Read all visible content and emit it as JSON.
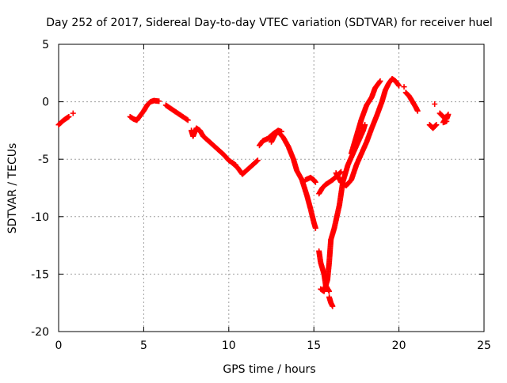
{
  "chart_data": {
    "type": "scatter",
    "title": "Day 252 of 2017, Sidereal Day-to-day VTEC variation (SDTVAR) for receiver huel",
    "xlabel": "GPS time / hours",
    "ylabel": "SDTVAR / TECUs",
    "xlim": [
      0,
      25
    ],
    "ylim": [
      -20,
      5
    ],
    "xticks": [
      0,
      5,
      10,
      15,
      20,
      25
    ],
    "yticks": [
      -20,
      -15,
      -10,
      -5,
      0,
      5
    ],
    "xtick_labels": [
      "0",
      "5",
      "10",
      "15",
      "20",
      "25"
    ],
    "ytick_labels": [
      "-20",
      "-15",
      "-10",
      "-5",
      "0",
      "5"
    ],
    "grid": true,
    "marker": "+",
    "series": [
      {
        "name": "SDTVAR",
        "color": "#ff0000",
        "tracks": [
          [
            [
              0.0,
              -2.0
            ],
            [
              0.15,
              -1.8
            ],
            [
              0.3,
              -1.6
            ],
            [
              0.5,
              -1.4
            ],
            [
              0.6,
              -1.3
            ]
          ],
          [
            [
              0.85,
              -1.0
            ]
          ],
          [
            [
              4.2,
              -1.3
            ],
            [
              4.4,
              -1.5
            ],
            [
              4.6,
              -1.6
            ],
            [
              4.8,
              -1.2
            ],
            [
              5.0,
              -0.8
            ],
            [
              5.2,
              -0.3
            ],
            [
              5.4,
              0.0
            ],
            [
              5.6,
              0.1
            ],
            [
              5.9,
              0.05
            ]
          ],
          [
            [
              6.3,
              -0.3
            ],
            [
              6.6,
              -0.6
            ],
            [
              6.9,
              -0.9
            ],
            [
              7.2,
              -1.2
            ],
            [
              7.6,
              -1.6
            ]
          ],
          [
            [
              7.8,
              -2.5
            ],
            [
              7.9,
              -3.0
            ],
            [
              8.1,
              -2.3
            ],
            [
              8.3,
              -2.5
            ],
            [
              8.5,
              -3.0
            ],
            [
              8.8,
              -3.4
            ],
            [
              9.1,
              -3.8
            ],
            [
              9.4,
              -4.2
            ],
            [
              9.7,
              -4.6
            ],
            [
              10.0,
              -5.1
            ],
            [
              10.4,
              -5.5
            ]
          ],
          [
            [
              10.2,
              -5.3
            ],
            [
              10.5,
              -5.7
            ],
            [
              10.8,
              -6.3
            ],
            [
              11.1,
              -5.9
            ],
            [
              11.4,
              -5.5
            ],
            [
              11.7,
              -5.1
            ]
          ],
          [
            [
              11.8,
              -3.8
            ],
            [
              12.0,
              -3.4
            ],
            [
              12.3,
              -3.2
            ],
            [
              12.6,
              -2.8
            ],
            [
              12.9,
              -2.5
            ],
            [
              13.1,
              -2.6
            ]
          ],
          [
            [
              12.5,
              -3.5
            ],
            [
              12.7,
              -2.9
            ],
            [
              12.9,
              -2.6
            ],
            [
              13.2,
              -3.1
            ],
            [
              13.5,
              -3.9
            ],
            [
              13.8,
              -5.0
            ],
            [
              14.0,
              -6.0
            ],
            [
              14.3,
              -6.8
            ],
            [
              14.6,
              -8.2
            ],
            [
              14.8,
              -9.3
            ],
            [
              15.0,
              -10.5
            ],
            [
              15.1,
              -11.0
            ]
          ],
          [
            [
              14.5,
              -6.8
            ],
            [
              14.8,
              -6.6
            ],
            [
              15.0,
              -6.8
            ],
            [
              15.1,
              -7.0
            ]
          ],
          [
            [
              15.3,
              -13.0
            ],
            [
              15.4,
              -14.0
            ],
            [
              15.6,
              -15.0
            ],
            [
              15.7,
              -16.0
            ],
            [
              15.9,
              -16.5
            ]
          ],
          [
            [
              15.4,
              -16.3
            ],
            [
              15.6,
              -16.5
            ],
            [
              15.8,
              -15.5
            ],
            [
              15.9,
              -14.0
            ],
            [
              16.0,
              -12.0
            ],
            [
              16.2,
              -11.0
            ],
            [
              16.5,
              -9.0
            ],
            [
              16.7,
              -7.0
            ],
            [
              17.0,
              -5.5
            ],
            [
              17.3,
              -4.5
            ],
            [
              17.6,
              -3.5
            ],
            [
              17.9,
              -2.5
            ],
            [
              18.0,
              -2.0
            ]
          ],
          [
            [
              15.9,
              -17.0
            ],
            [
              16.0,
              -17.5
            ],
            [
              16.1,
              -17.8
            ]
          ],
          [
            [
              15.3,
              -8.0
            ],
            [
              15.5,
              -7.5
            ],
            [
              15.7,
              -7.2
            ],
            [
              15.9,
              -7.0
            ],
            [
              16.1,
              -6.8
            ],
            [
              16.4,
              -6.4
            ],
            [
              16.6,
              -6.1
            ]
          ],
          [
            [
              16.3,
              -6.2
            ],
            [
              16.6,
              -7.0
            ],
            [
              16.9,
              -7.3
            ],
            [
              17.2,
              -6.8
            ],
            [
              17.5,
              -5.5
            ],
            [
              17.8,
              -4.5
            ],
            [
              18.1,
              -3.5
            ],
            [
              18.4,
              -2.3
            ],
            [
              18.7,
              -1.2
            ],
            [
              19.0,
              0.0
            ],
            [
              19.2,
              1.0
            ],
            [
              19.4,
              1.6
            ],
            [
              19.6,
              2.0
            ],
            [
              19.8,
              1.8
            ],
            [
              20.0,
              1.4
            ]
          ],
          [
            [
              17.2,
              -4.5
            ],
            [
              17.5,
              -3.0
            ],
            [
              17.8,
              -1.5
            ],
            [
              18.1,
              -0.3
            ],
            [
              18.4,
              0.4
            ],
            [
              18.6,
              1.2
            ],
            [
              18.9,
              1.8
            ]
          ],
          [
            [
              20.3,
              1.3
            ]
          ],
          [
            [
              20.4,
              0.8
            ],
            [
              20.6,
              0.5
            ],
            [
              20.8,
              0.0
            ],
            [
              21.0,
              -0.5
            ],
            [
              21.1,
              -0.8
            ]
          ],
          [
            [
              21.8,
              -2.0
            ],
            [
              22.0,
              -2.3
            ],
            [
              22.2,
              -2.0
            ]
          ],
          [
            [
              22.1,
              -0.2
            ]
          ],
          [
            [
              22.4,
              -1.0
            ],
            [
              22.6,
              -1.3
            ],
            [
              22.8,
              -1.5
            ],
            [
              22.9,
              -1.1
            ],
            [
              22.6,
              -1.8
            ],
            [
              22.8,
              -1.7
            ]
          ]
        ]
      }
    ]
  }
}
